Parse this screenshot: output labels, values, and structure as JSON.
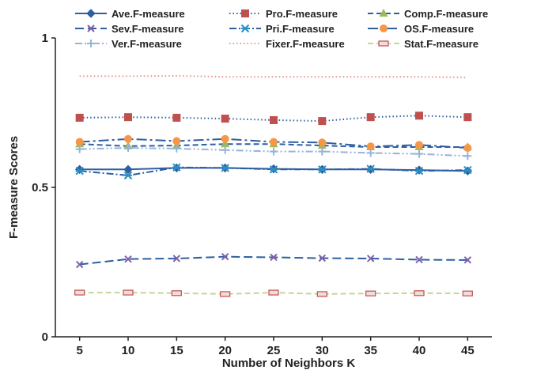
{
  "chart_data": {
    "type": "line",
    "xlabel": "Number of Neighbors K",
    "ylabel": "F-measure Scores",
    "x": [
      5,
      10,
      15,
      20,
      25,
      30,
      35,
      40,
      45
    ],
    "xlim": [
      2.5,
      47.5
    ],
    "ylim": [
      0,
      1
    ],
    "y_ticks": [
      0,
      0.5,
      1
    ],
    "y_tick_labels": [
      "0",
      "0.5",
      "1"
    ],
    "grid": false,
    "legend_position": "top",
    "series": [
      {
        "name": "Ave.F-measure",
        "color": "#2e5fa3",
        "dash": "solid",
        "marker": "diamond",
        "values": [
          0.56,
          0.56,
          0.565,
          0.565,
          0.562,
          0.56,
          0.56,
          0.558,
          0.555
        ]
      },
      {
        "name": "Pro.F-measure",
        "color": "#c0504d",
        "line_color": "#2e5fa3",
        "dash": "dot",
        "marker": "square",
        "values": [
          0.733,
          0.735,
          0.733,
          0.73,
          0.725,
          0.722,
          0.735,
          0.74,
          0.735
        ]
      },
      {
        "name": "Comp.F-measure",
        "color": "#9bbb59",
        "line_color": "#2e5fa3",
        "dash": "dash",
        "marker": "triangle",
        "values": [
          0.645,
          0.638,
          0.64,
          0.645,
          0.645,
          0.64,
          0.635,
          0.635,
          0.635
        ]
      },
      {
        "name": "Sev.F-measure",
        "color": "#7f5fa8",
        "line_color": "#2e5fa3",
        "dash": "longdash",
        "marker": "x",
        "values": [
          0.242,
          0.26,
          0.262,
          0.268,
          0.266,
          0.263,
          0.262,
          0.258,
          0.257
        ]
      },
      {
        "name": "Pri.F-measure",
        "color": "#2c8fc0",
        "line_color": "#2e5fa3",
        "dash": "dashdot",
        "marker": "asterisk",
        "values": [
          0.555,
          0.54,
          0.567,
          0.565,
          0.56,
          0.56,
          0.562,
          0.555,
          0.558
        ]
      },
      {
        "name": "OS.F-measure",
        "color": "#f79646",
        "line_color": "#2e5fa3",
        "dash": "longdashdot",
        "marker": "circle",
        "values": [
          0.652,
          0.662,
          0.655,
          0.662,
          0.652,
          0.65,
          0.637,
          0.642,
          0.632
        ]
      },
      {
        "name": "Ver.F-measure",
        "color": "#95b3d7",
        "dash": "dashdotdot",
        "marker": "plus",
        "values": [
          0.628,
          0.632,
          0.63,
          0.625,
          0.62,
          0.62,
          0.615,
          0.612,
          0.605
        ]
      },
      {
        "name": "Fixer.F-measure",
        "color": "#e6938f",
        "dash": "dot",
        "marker": "none",
        "values": [
          0.872,
          0.872,
          0.873,
          0.87,
          0.87,
          0.87,
          0.87,
          0.87,
          0.868
        ]
      },
      {
        "name": "Stat.F-measure",
        "color": "#c3d69b",
        "dash": "dash",
        "marker": "rect",
        "marker_stroke": "#c0504d",
        "values": [
          0.148,
          0.148,
          0.146,
          0.143,
          0.148,
          0.143,
          0.145,
          0.146,
          0.145
        ]
      }
    ]
  }
}
